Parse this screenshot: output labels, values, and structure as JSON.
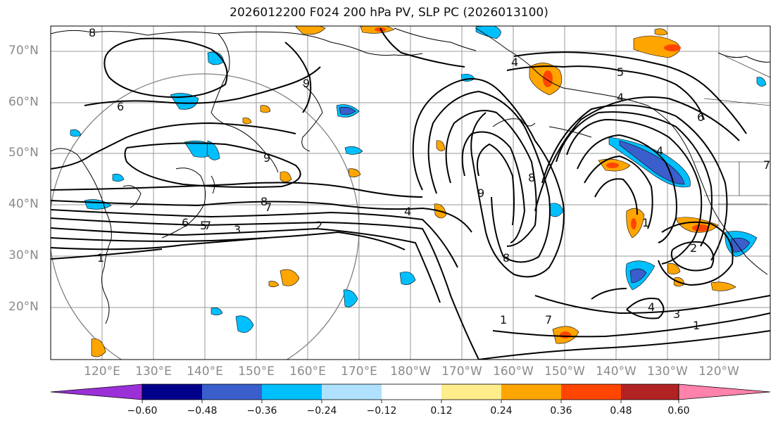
{
  "title": "2026012200 F024 200 hPa PV, SLP PC (2026013100)",
  "lat_labels": [
    "70°N",
    "60°N",
    "50°N",
    "40°N",
    "30°N",
    "20°N"
  ],
  "lon_labels": [
    "120°E",
    "130°E",
    "140°E",
    "150°E",
    "160°E",
    "170°E",
    "180°W",
    "170°W",
    "160°W",
    "150°W",
    "140°W",
    "130°W",
    "120°W"
  ],
  "colorbar": {
    "ticks": [
      "−0.60",
      "−0.48",
      "−0.36",
      "−0.24",
      "−0.12",
      "0.12",
      "0.24",
      "0.36",
      "0.48",
      "0.60"
    ],
    "colors": [
      "#9b30d9",
      "#00008b",
      "#3a5fcd",
      "#00bfff",
      "#b0e2ff",
      "#ffffff",
      "#ffec8b",
      "#ffa500",
      "#ff4500",
      "#b22222",
      "#ff82ab"
    ]
  },
  "contour_labels": [
    "8",
    "7",
    "6",
    "9",
    "4",
    "5",
    "4",
    "6",
    "9",
    "8",
    "7",
    "6",
    "5",
    "3",
    "2",
    "1",
    "4",
    "9",
    "8",
    "8",
    "4",
    "1",
    "2",
    "1",
    "3",
    "4",
    "1",
    "7",
    "7"
  ]
}
